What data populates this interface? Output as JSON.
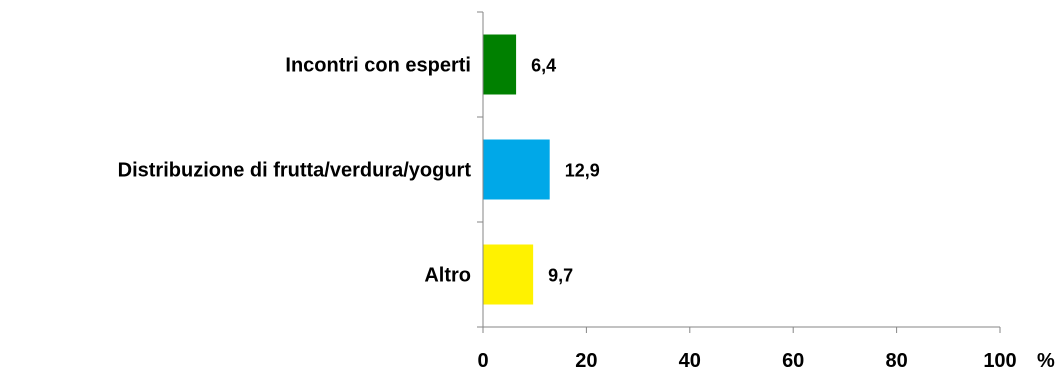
{
  "chart_data": {
    "type": "bar",
    "orientation": "horizontal",
    "categories": [
      "Incontri con esperti",
      "Distribuzione di frutta/verdura/yogurt",
      "Altro"
    ],
    "values": [
      6.4,
      12.9,
      9.7
    ],
    "value_labels": [
      "6,4",
      "12,9",
      "9,7"
    ],
    "colors": [
      "#008000",
      "#00A8E8",
      "#FFF200"
    ],
    "xlim": [
      0,
      100
    ],
    "xticks": [
      0,
      20,
      40,
      60,
      80,
      100
    ],
    "xtick_labels": [
      "0",
      "20",
      "40",
      "60",
      "80",
      "100"
    ],
    "unit": "%",
    "grid": false,
    "legend": "none"
  }
}
